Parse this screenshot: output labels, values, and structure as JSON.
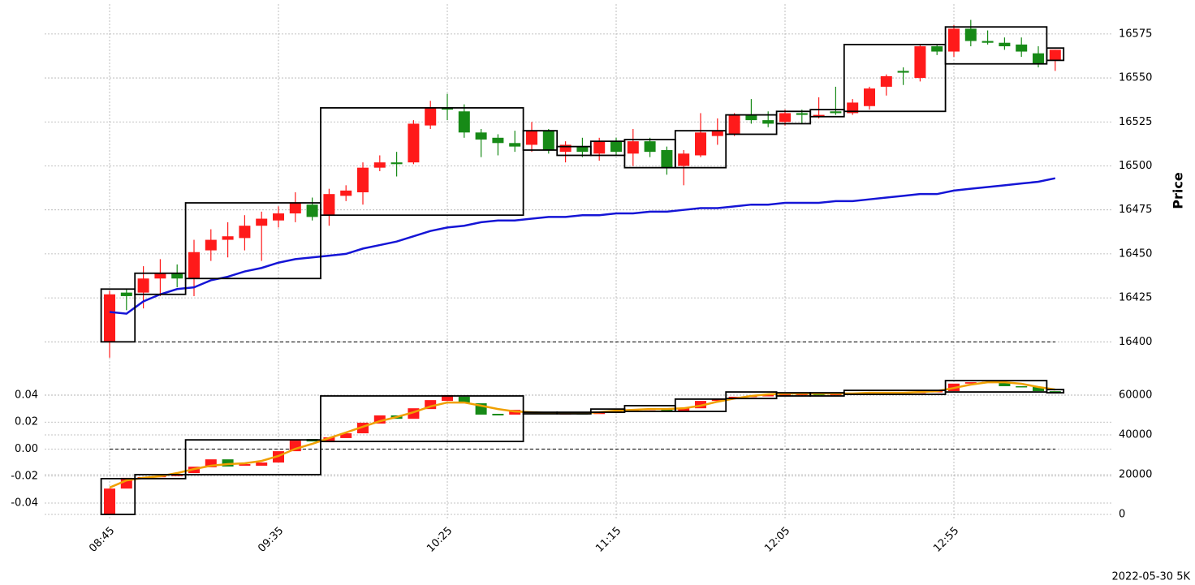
{
  "footer": "2022-05-30 5K",
  "chart_data": [
    {
      "type": "candlestick",
      "ylabel": "Price",
      "ylim": [
        16390,
        16592
      ],
      "yticks": [
        16400,
        16425,
        16450,
        16475,
        16500,
        16525,
        16550,
        16575
      ],
      "grid": true,
      "up_color": "#ff1a1a",
      "down_color": "#178a17",
      "hline": 16400,
      "open": [
        16400,
        16428,
        16428,
        16436,
        16439,
        16436,
        16452,
        16458,
        16459,
        16466,
        16469,
        16473,
        16478,
        16472,
        16483,
        16485,
        16499,
        16502,
        16502,
        16523,
        16533,
        16531,
        16519,
        16516,
        16513,
        16512,
        16520,
        16508,
        16511,
        16507,
        16514,
        16507,
        16514,
        16509,
        16500,
        16506,
        16517,
        16518,
        16529,
        16526,
        16525,
        16530,
        16528,
        16531,
        16530,
        16534,
        16545,
        16554,
        16550,
        16568,
        16565,
        16578,
        16571,
        16570,
        16569,
        16564,
        16560
      ],
      "high": [
        16429,
        16430,
        16443,
        16447,
        16444,
        16458,
        16464,
        16468,
        16472,
        16474,
        16477,
        16485,
        16482,
        16487,
        16489,
        16502,
        16506,
        16508,
        16526,
        16537,
        16541,
        16535,
        16521,
        16518,
        16520,
        16525,
        16521,
        16514,
        16516,
        16516,
        16516,
        16521,
        16516,
        16511,
        16509,
        16530,
        16527,
        16530,
        16538,
        16531,
        16532,
        16532,
        16539,
        16545,
        16538,
        16545,
        16552,
        16556,
        16569,
        16569,
        16580,
        16583,
        16577,
        16573,
        16573,
        16568,
        16566
      ],
      "low": [
        16391,
        16418,
        16419,
        16426,
        16431,
        16426,
        16446,
        16448,
        16452,
        16446,
        16465,
        16468,
        16469,
        16466,
        16480,
        16478,
        16497,
        16494,
        16501,
        16521,
        16526,
        16516,
        16505,
        16506,
        16508,
        16508,
        16507,
        16502,
        16505,
        16503,
        16506,
        16500,
        16505,
        16495,
        16489,
        16505,
        16512,
        16517,
        16524,
        16522,
        16523,
        16524,
        16527,
        16529,
        16529,
        16532,
        16540,
        16546,
        16548,
        16563,
        16562,
        16568,
        16569,
        16566,
        16562,
        16556,
        16554
      ],
      "close": [
        16427,
        16426,
        16436,
        16439,
        16436,
        16451,
        16458,
        16460,
        16466,
        16470,
        16473,
        16479,
        16471,
        16484,
        16486,
        16499,
        16502,
        16501,
        16524,
        16533,
        16532,
        16519,
        16515,
        16513,
        16511,
        16520,
        16509,
        16512,
        16508,
        16514,
        16508,
        16514,
        16508,
        16499,
        16507,
        16519,
        16520,
        16529,
        16526,
        16524,
        16530,
        16529,
        16529,
        16530,
        16536,
        16544,
        16551,
        16553,
        16568,
        16565,
        16578,
        16571,
        16570,
        16568,
        16565,
        16558,
        16566
      ],
      "line": {
        "color": "#1515d6",
        "values": [
          16417,
          16416,
          16423,
          16427,
          16430,
          16431,
          16435,
          16437,
          16440,
          16442,
          16445,
          16447,
          16448,
          16449,
          16450,
          16453,
          16455,
          16457,
          16460,
          16463,
          16465,
          16466,
          16468,
          16469,
          16469,
          16470,
          16471,
          16471,
          16472,
          16472,
          16473,
          16473,
          16474,
          16474,
          16475,
          16476,
          16476,
          16477,
          16478,
          16478,
          16479,
          16479,
          16479,
          16480,
          16480,
          16481,
          16482,
          16483,
          16484,
          16484,
          16486,
          16487,
          16488,
          16489,
          16490,
          16491,
          16493
        ]
      },
      "boxes": [
        {
          "start": 0,
          "end": 1,
          "low": 16400,
          "high": 16430
        },
        {
          "start": 2,
          "end": 4,
          "low": 16427,
          "high": 16439
        },
        {
          "start": 5,
          "end": 12,
          "low": 16436,
          "high": 16479
        },
        {
          "start": 13,
          "end": 24,
          "low": 16472,
          "high": 16533
        },
        {
          "start": 25,
          "end": 26,
          "low": 16509,
          "high": 16520
        },
        {
          "start": 27,
          "end": 28,
          "low": 16506,
          "high": 16511
        },
        {
          "start": 29,
          "end": 30,
          "low": 16506,
          "high": 16514
        },
        {
          "start": 31,
          "end": 33,
          "low": 16499,
          "high": 16515
        },
        {
          "start": 34,
          "end": 36,
          "low": 16499,
          "high": 16520
        },
        {
          "start": 37,
          "end": 39,
          "low": 16518,
          "high": 16529
        },
        {
          "start": 40,
          "end": 41,
          "low": 16524,
          "high": 16531
        },
        {
          "start": 42,
          "end": 43,
          "low": 16528,
          "high": 16532
        },
        {
          "start": 44,
          "end": 49,
          "low": 16531,
          "high": 16569
        },
        {
          "start": 50,
          "end": 55,
          "low": 16558,
          "high": 16579
        },
        {
          "start": 56,
          "end": 56,
          "low": 16560,
          "high": 16567
        }
      ]
    },
    {
      "type": "candlestick",
      "ylim": [
        -0.052,
        0.0574
      ],
      "yticks": [
        -0.04,
        -0.02,
        {
          "value": 0,
          "label": "0.00"
        },
        0.02,
        0.04
      ],
      "y2lim": [
        -2450,
        71840
      ],
      "y2ticks": [
        0,
        20000,
        40000,
        60000
      ],
      "grid": true,
      "up_color": "#ff1a1a",
      "down_color": "#178a17",
      "hline": 0,
      "categories": [
        "08:45",
        null,
        null,
        null,
        null,
        null,
        null,
        null,
        null,
        null,
        "09:35",
        null,
        null,
        null,
        null,
        null,
        null,
        null,
        null,
        null,
        "10:25",
        null,
        null,
        null,
        null,
        null,
        null,
        null,
        null,
        null,
        "11:15",
        null,
        null,
        null,
        null,
        null,
        null,
        null,
        null,
        null,
        "12:05",
        null,
        null,
        null,
        null,
        null,
        null,
        null,
        null,
        null,
        "12:55",
        null,
        null,
        null,
        null,
        null,
        null
      ],
      "axis": "y2",
      "open": [
        0,
        13000,
        18400,
        18800,
        19300,
        20800,
        23700,
        27700,
        24500,
        24500,
        26100,
        31800,
        37900,
        36300,
        38400,
        40800,
        45700,
        49800,
        48100,
        53000,
        57100,
        59200,
        55900,
        50600,
        50200,
        51800,
        51000,
        50600,
        50800,
        50500,
        51400,
        51800,
        52600,
        53000,
        51800,
        53400,
        57100,
        58300,
        59200,
        59600,
        60000,
        60400,
        60600,
        60400,
        60600,
        60800,
        61000,
        61200,
        61400,
        61600,
        62000,
        65800,
        66500,
        66700,
        64500,
        64100,
        62000
      ],
      "close": [
        13000,
        18400,
        18800,
        19300,
        20000,
        24000,
        27700,
        24100,
        25300,
        26100,
        31800,
        37100,
        36700,
        38800,
        40800,
        46100,
        49800,
        48100,
        53400,
        57500,
        60000,
        56300,
        50200,
        49800,
        52600,
        51000,
        50600,
        50800,
        50500,
        51400,
        51800,
        52600,
        53000,
        51800,
        53400,
        57100,
        58300,
        59200,
        59600,
        60000,
        60400,
        60600,
        60400,
        60600,
        60800,
        61000,
        61200,
        61400,
        61600,
        62000,
        65800,
        66500,
        66700,
        64500,
        64100,
        62000,
        61200
      ],
      "line": {
        "color": "#f0a000",
        "values": [
          13500,
          17100,
          18400,
          19200,
          20800,
          22800,
          24500,
          25300,
          25700,
          26900,
          29400,
          33000,
          35500,
          38400,
          41200,
          44100,
          46900,
          49000,
          51400,
          54300,
          56300,
          56300,
          54700,
          53000,
          51800,
          51400,
          51000,
          51000,
          51000,
          51400,
          52200,
          52600,
          53000,
          53000,
          53400,
          54700,
          56700,
          58300,
          59600,
          60400,
          60800,
          60800,
          60800,
          60800,
          60800,
          61200,
          61200,
          61200,
          61600,
          62000,
          63600,
          65300,
          66500,
          66500,
          65700,
          64100,
          62800
        ]
      },
      "boxes": [
        {
          "start": 0,
          "end": 1,
          "low": 0,
          "high": 18000
        },
        {
          "start": 2,
          "end": 4,
          "low": 18000,
          "high": 20000
        },
        {
          "start": 5,
          "end": 12,
          "low": 20000,
          "high": 37500
        },
        {
          "start": 13,
          "end": 24,
          "low": 36700,
          "high": 59600
        },
        {
          "start": 25,
          "end": 26,
          "low": 50600,
          "high": 51400
        },
        {
          "start": 27,
          "end": 28,
          "low": 50600,
          "high": 51400
        },
        {
          "start": 29,
          "end": 30,
          "low": 51400,
          "high": 53000
        },
        {
          "start": 31,
          "end": 33,
          "low": 51800,
          "high": 54700
        },
        {
          "start": 34,
          "end": 36,
          "low": 51800,
          "high": 58000
        },
        {
          "start": 37,
          "end": 39,
          "low": 58300,
          "high": 61600
        },
        {
          "start": 40,
          "end": 41,
          "low": 59600,
          "high": 61200
        },
        {
          "start": 42,
          "end": 43,
          "low": 59600,
          "high": 61200
        },
        {
          "start": 44,
          "end": 49,
          "low": 60400,
          "high": 62400
        },
        {
          "start": 50,
          "end": 55,
          "low": 61600,
          "high": 67300
        },
        {
          "start": 56,
          "end": 56,
          "low": 61200,
          "high": 62800
        }
      ]
    }
  ]
}
